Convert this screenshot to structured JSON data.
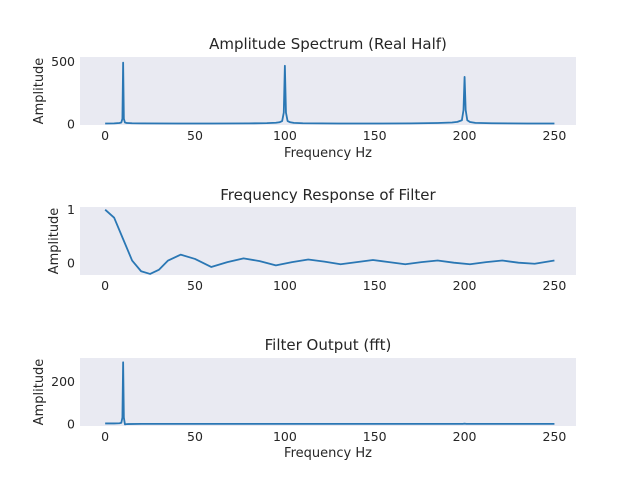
{
  "chart_data": [
    {
      "type": "line",
      "title": "Amplitude Spectrum (Real Half)",
      "xlabel": "Frequency Hz",
      "ylabel": "Amplitude",
      "xlim": [
        -14,
        262
      ],
      "ylim": [
        -10,
        535
      ],
      "xticks": [
        0,
        50,
        100,
        150,
        200,
        250
      ],
      "yticks": [
        0,
        500
      ],
      "grid": false,
      "series": [
        {
          "x": [
            0,
            5,
            8,
            9,
            9.6,
            10,
            10.4,
            11,
            12,
            15,
            20,
            40,
            60,
            80,
            90,
            95,
            97,
            98.5,
            99.4,
            100,
            100.6,
            101.5,
            103,
            105,
            110,
            130,
            150,
            170,
            185,
            193,
            196,
            198.5,
            199.4,
            200,
            200.6,
            201.5,
            203,
            206,
            215,
            235,
            250
          ],
          "y": [
            2,
            3,
            6,
            10,
            40,
            490,
            40,
            10,
            6,
            4,
            3,
            2,
            2,
            3,
            5,
            8,
            12,
            22,
            90,
            465,
            90,
            22,
            12,
            7,
            4,
            2,
            2,
            3,
            6,
            10,
            15,
            28,
            110,
            375,
            110,
            28,
            14,
            7,
            4,
            2,
            2
          ]
        }
      ]
    },
    {
      "type": "line",
      "title": "Frequency Response of Filter",
      "xlabel": "",
      "ylabel": "Amplitude",
      "xlim": [
        -14,
        262
      ],
      "ylim": [
        -0.22,
        1.05
      ],
      "xticks": [
        0,
        50,
        100,
        150,
        200,
        250
      ],
      "yticks": [
        0,
        1
      ],
      "grid": false,
      "series": [
        {
          "x": [
            0,
            5,
            10,
            15,
            20,
            25,
            30,
            35,
            42,
            50,
            59,
            68,
            77,
            86,
            95,
            104,
            113,
            122,
            131,
            140,
            149,
            158,
            167,
            176,
            185,
            194,
            203,
            212,
            221,
            230,
            239,
            250
          ],
          "y": [
            1.0,
            0.85,
            0.45,
            0.05,
            -0.15,
            -0.2,
            -0.12,
            0.05,
            0.16,
            0.08,
            -0.07,
            0.02,
            0.09,
            0.04,
            -0.04,
            0.02,
            0.07,
            0.03,
            -0.02,
            0.02,
            0.06,
            0.02,
            -0.02,
            0.02,
            0.05,
            0.01,
            -0.02,
            0.02,
            0.05,
            0.01,
            -0.01,
            0.05
          ]
        }
      ]
    },
    {
      "type": "line",
      "title": "Filter Output (fft)",
      "xlabel": "Frequency Hz",
      "ylabel": "Amplitude",
      "xlim": [
        -14,
        262
      ],
      "ylim": [
        -10,
        310
      ],
      "xticks": [
        0,
        50,
        100,
        150,
        200,
        250
      ],
      "yticks": [
        0,
        200
      ],
      "grid": false,
      "series": [
        {
          "x": [
            0,
            5,
            8,
            9,
            9.6,
            10,
            10.4,
            11,
            12,
            20,
            50,
            100,
            150,
            199,
            200,
            201,
            250
          ],
          "y": [
            2,
            2,
            3,
            5,
            30,
            290,
            30,
            -2,
            -1,
            0,
            0,
            0,
            0,
            0,
            1,
            0,
            0
          ]
        }
      ]
    }
  ]
}
